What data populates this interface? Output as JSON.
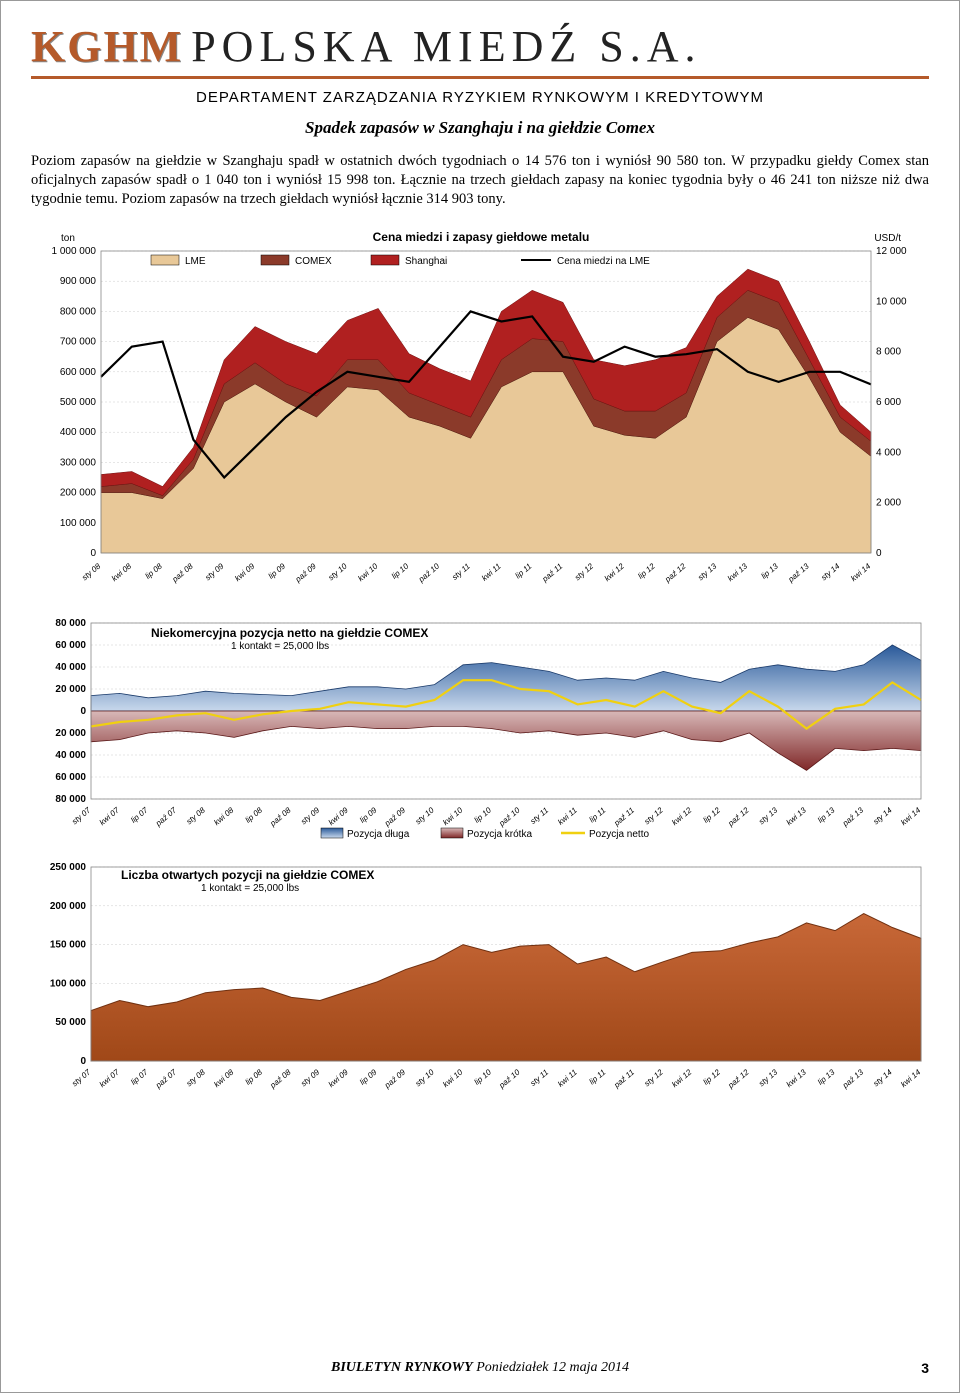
{
  "header": {
    "logo_kghm": "KGHM",
    "logo_rest": "POLSKA MIEDŹ S.A.",
    "dept": "DEPARTAMENT ZARZĄDZANIA RYZYKIEM RYNKOWYM I KREDYTOWYM"
  },
  "title": "Spadek zapasów w Szanghaju i na giełdzie Comex",
  "body": "Poziom zapasów na giełdzie w Szanghaju spadł w ostatnich dwóch tygodniach o 14 576 ton i wyniósł 90 580 ton. W przypadku giełdy Comex stan oficjalnych zapasów spadł o 1 040 ton i wyniósł 15 998 ton. Łącznie na trzech giełdach zapasy na koniec tygodnia były o 46 241 ton niższe niż dwa tygodnie temu. Poziom zapasów na trzech giełdach wyniósł łącznie 314 903 tony.",
  "chart1": {
    "title": "Cena miedzi i zapasy giełdowe metalu",
    "left_unit": "ton",
    "right_unit": "USD/t",
    "left_max": 1000000,
    "left_step": 100000,
    "right_max": 12000,
    "right_step": 2000,
    "right_ticks": [
      "12 000",
      "10 000",
      "8 000",
      "6 000",
      "4 000",
      "2 000",
      "0"
    ],
    "left_ticks": [
      "1 000 000",
      "900 000",
      "800 000",
      "700 000",
      "600 000",
      "500 000",
      "400 000",
      "300 000",
      "200 000",
      "100 000",
      "0"
    ],
    "legend": [
      "LME",
      "COMEX",
      "Shanghai",
      "Cena miedzi na LME"
    ],
    "colors": {
      "lme": "#e8c898",
      "comex": "#8b3a2a",
      "shanghai": "#b02020",
      "line": "#000000",
      "bg": "#ffffff",
      "grid": "#cccccc"
    },
    "x_labels": [
      "sty 08",
      "kwi 08",
      "lip 08",
      "paź 08",
      "sty 09",
      "kwi 09",
      "lip 09",
      "paź 09",
      "sty 10",
      "kwi 10",
      "lip 10",
      "paź 10",
      "sty 11",
      "kwi 11",
      "lip 11",
      "paź 11",
      "sty 12",
      "kwi 12",
      "lip 12",
      "paź 12",
      "sty 13",
      "kwi 13",
      "lip 13",
      "paź 13",
      "sty 14",
      "kwi 14"
    ],
    "lme_total": [
      200000,
      200000,
      180000,
      280000,
      500000,
      560000,
      500000,
      450000,
      550000,
      540000,
      450000,
      420000,
      380000,
      550000,
      600000,
      600000,
      420000,
      390000,
      380000,
      450000,
      700000,
      780000,
      740000,
      580000,
      400000,
      320000
    ],
    "comex_top": [
      220000,
      230000,
      190000,
      310000,
      560000,
      630000,
      560000,
      520000,
      640000,
      640000,
      530000,
      490000,
      450000,
      640000,
      710000,
      700000,
      510000,
      470000,
      470000,
      530000,
      780000,
      870000,
      830000,
      640000,
      450000,
      370000
    ],
    "shanghai_top": [
      260000,
      270000,
      220000,
      350000,
      640000,
      750000,
      700000,
      660000,
      770000,
      810000,
      660000,
      610000,
      570000,
      800000,
      870000,
      830000,
      640000,
      620000,
      640000,
      680000,
      850000,
      940000,
      900000,
      700000,
      490000,
      400000
    ],
    "price": [
      7000,
      8200,
      8400,
      4500,
      3000,
      4200,
      5400,
      6400,
      7200,
      7000,
      6800,
      8200,
      9600,
      9200,
      9400,
      7800,
      7600,
      8200,
      7800,
      7900,
      8100,
      7200,
      6800,
      7200,
      7200,
      6700
    ]
  },
  "chart2": {
    "title": "Niekomercyjna pozycja netto na giełdzie COMEX",
    "subtitle": "1 kontakt = 25,000 lbs",
    "y_pos": [
      "80 000",
      "60 000",
      "40 000",
      "20 000",
      "0"
    ],
    "y_neg": [
      "20 000",
      "40 000",
      "60 000",
      "80 000"
    ],
    "pos_color": "#0000cc",
    "neg_color": "#cc0000",
    "colors": {
      "long": "#5a8ac0",
      "short": "#a04040",
      "netto": "#f0d010"
    },
    "legend": [
      "Pozycja długa",
      "Pozycja krótka",
      "Pozycja netto"
    ],
    "x_labels": [
      "sty 07",
      "kwi 07",
      "lip 07",
      "paź 07",
      "sty 08",
      "kwi 08",
      "lip 08",
      "paź 08",
      "sty 09",
      "kwi 09",
      "lip 09",
      "paź 09",
      "sty 10",
      "kwi 10",
      "lip 10",
      "paź 10",
      "sty 11",
      "kwi 11",
      "lip 11",
      "paź 11",
      "sty 12",
      "kwi 12",
      "lip 12",
      "paź 12",
      "sty 13",
      "kwi 13",
      "lip 13",
      "paź 13",
      "sty 14",
      "kwi 14"
    ],
    "long": [
      14000,
      16000,
      12000,
      14000,
      18000,
      16000,
      15000,
      14000,
      18000,
      22000,
      22000,
      20000,
      24000,
      42000,
      44000,
      40000,
      36000,
      28000,
      30000,
      28000,
      36000,
      30000,
      26000,
      38000,
      42000,
      38000,
      36000,
      42000,
      60000,
      46000
    ],
    "short": [
      -28000,
      -26000,
      -20000,
      -18000,
      -20000,
      -24000,
      -18000,
      -14000,
      -16000,
      -14000,
      -16000,
      -16000,
      -14000,
      -14000,
      -16000,
      -20000,
      -18000,
      -22000,
      -20000,
      -24000,
      -18000,
      -26000,
      -28000,
      -20000,
      -38000,
      -54000,
      -34000,
      -36000,
      -34000,
      -36000
    ],
    "netto": [
      -14000,
      -10000,
      -8000,
      -4000,
      -2000,
      -8000,
      -3000,
      0,
      2000,
      8000,
      6000,
      4000,
      10000,
      28000,
      28000,
      20000,
      18000,
      6000,
      10000,
      4000,
      18000,
      4000,
      -2000,
      18000,
      4000,
      -16000,
      2000,
      6000,
      26000,
      10000
    ]
  },
  "chart3": {
    "title": "Liczba otwartych pozycji na giełdzie COMEX",
    "subtitle": "1 kontakt = 25,000 lbs",
    "y_ticks": [
      "250 000",
      "200 000",
      "150 000",
      "100 000",
      "50 000",
      "0"
    ],
    "y_max": 250000,
    "color": "#b05020",
    "x_labels": [
      "sty 07",
      "kwi 07",
      "lip 07",
      "paź 07",
      "sty 08",
      "kwi 08",
      "lip 08",
      "paź 08",
      "sty 09",
      "kwi 09",
      "lip 09",
      "paź 09",
      "sty 10",
      "kwi 10",
      "lip 10",
      "paź 10",
      "sty 11",
      "kwi 11",
      "lip 11",
      "paź 11",
      "sty 12",
      "kwi 12",
      "lip 12",
      "paź 12",
      "sty 13",
      "kwi 13",
      "lip 13",
      "paź 13",
      "sty 14",
      "kwi 14"
    ],
    "values": [
      65000,
      78000,
      70000,
      76000,
      88000,
      92000,
      94000,
      82000,
      78000,
      90000,
      102000,
      118000,
      130000,
      150000,
      140000,
      148000,
      150000,
      125000,
      134000,
      115000,
      128000,
      140000,
      142000,
      152000,
      160000,
      178000,
      168000,
      190000,
      172000,
      158000
    ]
  },
  "footer": {
    "bold": "BIULETYN RYNKOWY",
    "rest": " Poniedziałek 12 maja 2014",
    "page": "3"
  }
}
